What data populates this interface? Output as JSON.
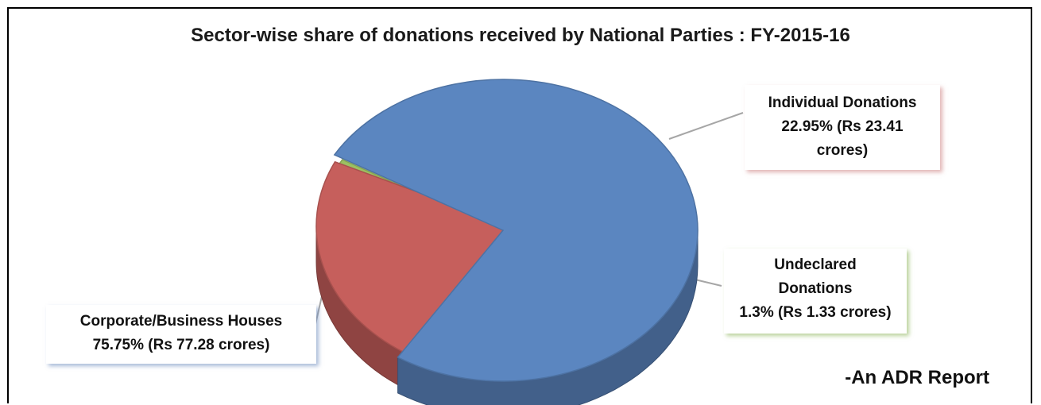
{
  "chart_data": {
    "type": "pie",
    "title": "Sector-wise share of donations received by National Parties : FY-2015-16",
    "slices": [
      {
        "name": "Corporate/Business Houses",
        "percent": 75.75,
        "amount_crores": 77.28,
        "label_lines": [
          "Corporate/Business Houses",
          "75.75% (Rs 77.28 crores)"
        ],
        "color": "#5b86c0"
      },
      {
        "name": "Individual Donations",
        "percent": 22.95,
        "amount_crores": 23.41,
        "label_lines": [
          "Individual Donations",
          "22.95% (Rs 23.41",
          "crores)"
        ],
        "color": "#c65f5c"
      },
      {
        "name": "Undeclared Donations",
        "percent": 1.3,
        "amount_crores": 1.33,
        "label_lines": [
          "Undeclared",
          "Donations",
          "1.3% (Rs 1.33 crores)"
        ],
        "color": "#9cc162"
      }
    ],
    "legend": "none",
    "style": "3d exploded pie"
  },
  "footer": {
    "credit": "-An ADR Report"
  }
}
